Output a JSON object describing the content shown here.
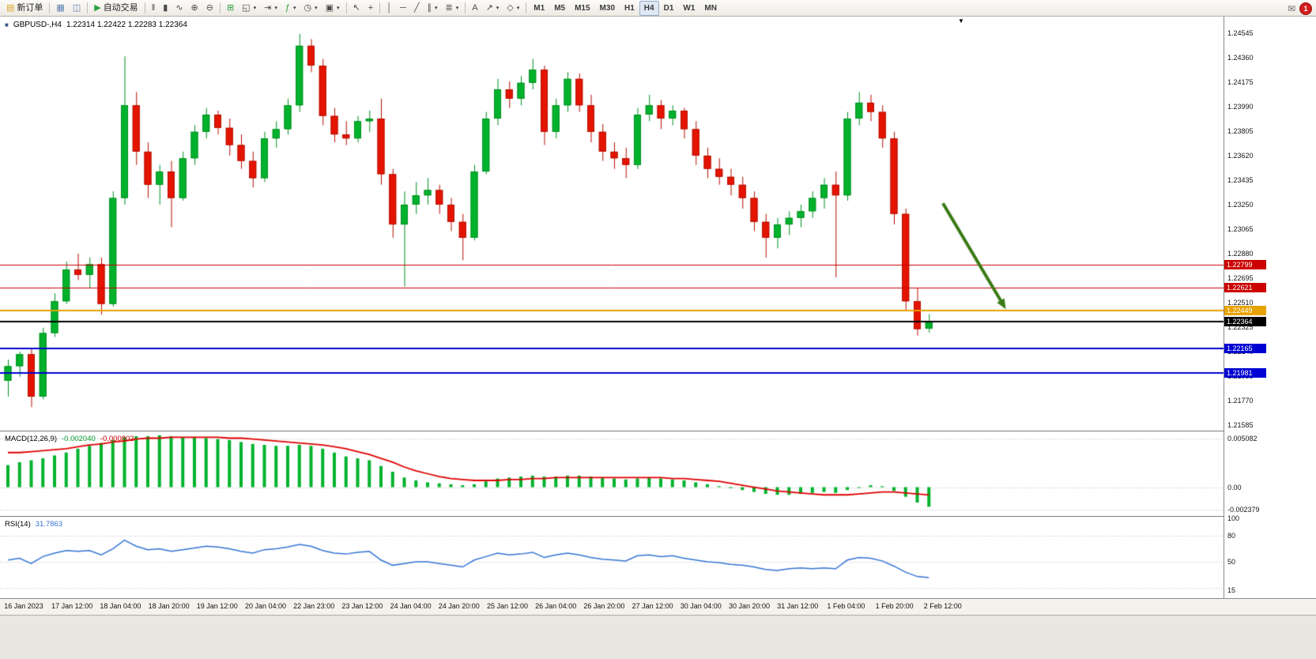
{
  "toolbar": {
    "groups": [
      {
        "items": [
          {
            "name": "new-order-button",
            "icon": "new-order-icon",
            "glyph": "▤",
            "color": "#d9a520",
            "label": "新订单"
          }
        ]
      },
      {
        "items": [
          {
            "name": "market-watch-button",
            "icon": "market-watch-icon",
            "glyph": "▦",
            "color": "#5b7fae"
          },
          {
            "name": "data-window-button",
            "icon": "data-window-icon",
            "glyph": "◫",
            "color": "#5b7fae"
          }
        ]
      },
      {
        "items": [
          {
            "name": "auto-trading-button",
            "icon": "auto-trading-icon",
            "glyph": "▶",
            "color": "#2e9e3e",
            "label": "自动交易"
          }
        ]
      },
      {
        "items": [
          {
            "name": "bar-chart-button",
            "icon": "bar-chart-icon",
            "glyph": "‖"
          },
          {
            "name": "candlestick-chart-button",
            "icon": "candlestick-icon",
            "glyph": "▮"
          },
          {
            "name": "line-chart-button",
            "icon": "line-chart-icon",
            "glyph": "∿"
          },
          {
            "name": "zoom-in-button",
            "icon": "zoom-in-icon",
            "glyph": "⊕"
          },
          {
            "name": "zoom-out-button",
            "icon": "zoom-out-icon",
            "glyph": "⊖"
          }
        ]
      },
      {
        "items": [
          {
            "name": "tile-windows-button",
            "icon": "tile-windows-icon",
            "glyph": "⊞",
            "color": "#2e9e3e"
          },
          {
            "name": "arrange-charts-button",
            "icon": "arrange-charts-icon",
            "glyph": "◱",
            "caret": true
          },
          {
            "name": "chart-shift-button",
            "icon": "chart-shift-icon",
            "glyph": "⇥",
            "caret": true
          },
          {
            "name": "indicators-button",
            "icon": "indicators-icon",
            "glyph": "ƒ",
            "color": "#2e9e3e",
            "caret": true
          },
          {
            "name": "periods-button",
            "icon": "clock-icon",
            "glyph": "◷",
            "caret": true
          },
          {
            "name": "templates-button",
            "icon": "templates-icon",
            "glyph": "▣",
            "caret": true
          }
        ]
      },
      {
        "items": [
          {
            "name": "cursor-button",
            "icon": "cursor-icon",
            "glyph": "↖"
          },
          {
            "name": "crosshair-button",
            "icon": "crosshair-icon",
            "glyph": "+"
          }
        ]
      },
      {
        "items": [
          {
            "name": "vertical-line-button",
            "icon": "vertical-line-icon",
            "glyph": "│"
          },
          {
            "name": "horizontal-line-button",
            "icon": "horizontal-line-icon",
            "glyph": "─"
          },
          {
            "name": "trendline-button",
            "icon": "trendline-icon",
            "glyph": "╱"
          },
          {
            "name": "channel-button",
            "icon": "channel-icon",
            "glyph": "∥",
            "caret": true
          },
          {
            "name": "fibonacci-button",
            "icon": "fibonacci-icon",
            "glyph": "≣",
            "caret": true
          }
        ]
      },
      {
        "items": [
          {
            "name": "text-label-button",
            "icon": "text-icon",
            "glyph": "A"
          },
          {
            "name": "arrows-button",
            "icon": "arrow-tool-icon",
            "glyph": "↗",
            "caret": true
          },
          {
            "name": "shapes-button",
            "icon": "shapes-icon",
            "glyph": "◇",
            "caret": true
          }
        ]
      }
    ],
    "timeframes": {
      "items": [
        "M1",
        "M5",
        "M15",
        "M30",
        "H1",
        "H4",
        "D1",
        "W1",
        "MN"
      ],
      "active": "H4"
    },
    "notification_count": "1",
    "shift_marker": "▼"
  },
  "chart": {
    "title": {
      "symbol": "GBPUSD-,H4",
      "ohlc": "1.22314 1.22422 1.22283 1.22364"
    }
  },
  "chart_data": {
    "type": "candlestick",
    "symbol": "GBPUSD-",
    "timeframe": "H4",
    "last_ohlc": {
      "open": "1.22314",
      "high": "1.22422",
      "low": "1.22283",
      "close": "1.22364"
    },
    "colors": {
      "up": "#00b22c",
      "up_border": "#008f20",
      "down": "#e51400",
      "down_border": "#b40f00"
    },
    "y_range": [
      1.21543,
      1.2467
    ],
    "y_axis_labels": [
      "1.24545",
      "1.24360",
      "1.24175",
      "1.23990",
      "1.23805",
      "1.23620",
      "1.23435",
      "1.23250",
      "1.23065",
      "1.22880",
      "1.22695",
      "1.22510",
      "1.22325",
      "1.22140",
      "1.21955",
      "1.21770",
      "1.21585"
    ],
    "x_labels": [
      "16 Jan 2023",
      "17 Jan 12:00",
      "18 Jan 04:00",
      "18 Jan 20:00",
      "19 Jan 12:00",
      "20 Jan 04:00",
      "22 Jan 23:00",
      "23 Jan 12:00",
      "24 Jan 04:00",
      "24 Jan 20:00",
      "25 Jan 12:00",
      "26 Jan 04:00",
      "26 Jan 20:00",
      "27 Jan 12:00",
      "30 Jan 04:00",
      "30 Jan 20:00",
      "31 Jan 12:00",
      "1 Feb 04:00",
      "1 Feb 20:00",
      "2 Feb 12:00"
    ],
    "candles": [
      [
        1.2192,
        1.2208,
        1.218,
        1.2203
      ],
      [
        1.2203,
        1.2214,
        1.2195,
        1.2212
      ],
      [
        1.2212,
        1.2216,
        1.2172,
        1.218
      ],
      [
        1.218,
        1.2232,
        1.2178,
        1.2228
      ],
      [
        1.2228,
        1.2258,
        1.2225,
        1.2252
      ],
      [
        1.2252,
        1.2282,
        1.225,
        1.2276
      ],
      [
        1.2276,
        1.2288,
        1.2268,
        1.2272
      ],
      [
        1.2272,
        1.2285,
        1.2262,
        1.228
      ],
      [
        1.228,
        1.2285,
        1.2242,
        1.225
      ],
      [
        1.225,
        1.2335,
        1.2248,
        1.233
      ],
      [
        1.233,
        1.2437,
        1.2325,
        1.24
      ],
      [
        1.24,
        1.241,
        1.2355,
        1.2365
      ],
      [
        1.2365,
        1.2372,
        1.233,
        1.234
      ],
      [
        1.234,
        1.2355,
        1.2325,
        1.235
      ],
      [
        1.235,
        1.2358,
        1.2308,
        1.233
      ],
      [
        1.233,
        1.2365,
        1.2328,
        1.236
      ],
      [
        1.236,
        1.2385,
        1.2355,
        1.238
      ],
      [
        1.238,
        1.2398,
        1.2375,
        1.2393
      ],
      [
        1.2393,
        1.2396,
        1.2378,
        1.2383
      ],
      [
        1.2383,
        1.239,
        1.2362,
        1.237
      ],
      [
        1.237,
        1.2378,
        1.2352,
        1.2358
      ],
      [
        1.2358,
        1.2365,
        1.2338,
        1.2345
      ],
      [
        1.2345,
        1.238,
        1.2342,
        1.2375
      ],
      [
        1.2375,
        1.2388,
        1.2368,
        1.2382
      ],
      [
        1.2382,
        1.2405,
        1.2378,
        1.24
      ],
      [
        1.24,
        1.2454,
        1.2395,
        1.2445
      ],
      [
        1.2445,
        1.245,
        1.2425,
        1.243
      ],
      [
        1.243,
        1.2435,
        1.2385,
        1.2392
      ],
      [
        1.2392,
        1.2398,
        1.2372,
        1.2378
      ],
      [
        1.2378,
        1.2388,
        1.237,
        1.2375
      ],
      [
        1.2375,
        1.2392,
        1.2372,
        1.2388
      ],
      [
        1.2388,
        1.2396,
        1.238,
        1.239
      ],
      [
        1.239,
        1.2405,
        1.234,
        1.2348
      ],
      [
        1.2348,
        1.2352,
        1.23,
        1.231
      ],
      [
        1.231,
        1.2335,
        1.2263,
        1.2325
      ],
      [
        1.2325,
        1.2342,
        1.2318,
        1.2332
      ],
      [
        1.2332,
        1.2345,
        1.2325,
        1.2336
      ],
      [
        1.2336,
        1.234,
        1.2318,
        1.2325
      ],
      [
        1.2325,
        1.233,
        1.2305,
        1.2312
      ],
      [
        1.2312,
        1.2318,
        1.2283,
        1.23
      ],
      [
        1.23,
        1.2355,
        1.2298,
        1.235
      ],
      [
        1.235,
        1.2395,
        1.2348,
        1.239
      ],
      [
        1.239,
        1.242,
        1.2385,
        1.2412
      ],
      [
        1.2412,
        1.2418,
        1.2398,
        1.2405
      ],
      [
        1.2405,
        1.2422,
        1.24,
        1.2417
      ],
      [
        1.2417,
        1.2435,
        1.2412,
        1.2427
      ],
      [
        1.2427,
        1.243,
        1.237,
        1.238
      ],
      [
        1.238,
        1.2405,
        1.2375,
        1.24
      ],
      [
        1.24,
        1.2425,
        1.2395,
        1.242
      ],
      [
        1.242,
        1.2424,
        1.2395,
        1.24
      ],
      [
        1.24,
        1.2408,
        1.2372,
        1.238
      ],
      [
        1.238,
        1.2386,
        1.2358,
        1.2365
      ],
      [
        1.2365,
        1.2372,
        1.2352,
        1.236
      ],
      [
        1.236,
        1.2368,
        1.2345,
        1.2355
      ],
      [
        1.2355,
        1.2398,
        1.2352,
        1.2393
      ],
      [
        1.2393,
        1.2408,
        1.2388,
        1.24
      ],
      [
        1.24,
        1.2404,
        1.2382,
        1.239
      ],
      [
        1.239,
        1.24,
        1.2385,
        1.2396
      ],
      [
        1.2396,
        1.2398,
        1.2375,
        1.2382
      ],
      [
        1.2382,
        1.2388,
        1.2355,
        1.2362
      ],
      [
        1.2362,
        1.2368,
        1.2345,
        1.2352
      ],
      [
        1.2352,
        1.236,
        1.234,
        1.2346
      ],
      [
        1.2346,
        1.2352,
        1.2332,
        1.234
      ],
      [
        1.234,
        1.2346,
        1.2322,
        1.233
      ],
      [
        1.233,
        1.2335,
        1.2305,
        1.2312
      ],
      [
        1.2312,
        1.2318,
        1.2285,
        1.23
      ],
      [
        1.23,
        1.2315,
        1.2292,
        1.231
      ],
      [
        1.231,
        1.232,
        1.2302,
        1.2315
      ],
      [
        1.2315,
        1.2325,
        1.2308,
        1.232
      ],
      [
        1.232,
        1.2335,
        1.2315,
        1.233
      ],
      [
        1.233,
        1.2345,
        1.2322,
        1.234
      ],
      [
        1.234,
        1.235,
        1.227,
        1.2332
      ],
      [
        1.2332,
        1.2395,
        1.2328,
        1.239
      ],
      [
        1.239,
        1.241,
        1.2385,
        1.2402
      ],
      [
        1.2402,
        1.2408,
        1.2388,
        1.2395
      ],
      [
        1.2395,
        1.24,
        1.2368,
        1.2375
      ],
      [
        1.2375,
        1.238,
        1.231,
        1.2318
      ],
      [
        1.2318,
        1.2322,
        1.2245,
        1.2252
      ],
      [
        1.2252,
        1.2262,
        1.2226,
        1.2231
      ],
      [
        1.22314,
        1.22422,
        1.22283,
        1.22364
      ]
    ],
    "hlines": [
      {
        "price": 1.22799,
        "label": "1.22799",
        "color": "#cc0000",
        "width": 1
      },
      {
        "price": 1.22621,
        "label": "1.22621",
        "color": "#cc0000",
        "width": 1
      },
      {
        "price": 1.22449,
        "label": "1.22449",
        "color": "#e8a200",
        "width": 2
      },
      {
        "price": 1.22364,
        "label": "1.22364",
        "color": "#000000",
        "width": 2
      },
      {
        "price": 1.22165,
        "label": "1.22165",
        "color": "#0000d2",
        "width": 2
      },
      {
        "price": 1.21981,
        "label": "1.21981",
        "color": "#0000d2",
        "width": 2
      }
    ],
    "arrow": {
      "i1": 80.2,
      "p1": 1.2326,
      "i2": 85.6,
      "p2": 1.2246,
      "color": "#3a7a14"
    },
    "macd": {
      "label": "MACD(12,26,9)",
      "main_value": "-0.002040",
      "signal_value": "-0.000802",
      "range": [
        -0.003,
        0.0058
      ],
      "axis": [
        [
          "0.005082",
          0.005082
        ],
        [
          "0.00",
          0
        ],
        [
          "-0.002379",
          -0.002379
        ]
      ],
      "hist_color": "#00b22c",
      "signal_color": "#e00000",
      "histogram": [
        0.0023,
        0.0026,
        0.0028,
        0.003,
        0.0033,
        0.0036,
        0.004,
        0.0043,
        0.0046,
        0.0049,
        0.0052,
        0.0053,
        0.0053,
        0.0054,
        0.0053,
        0.0052,
        0.0052,
        0.0051,
        0.005,
        0.0049,
        0.0047,
        0.0045,
        0.0044,
        0.0043,
        0.0043,
        0.0044,
        0.0043,
        0.004,
        0.0036,
        0.0032,
        0.003,
        0.0028,
        0.0022,
        0.0016,
        0.001,
        0.0007,
        0.0005,
        0.0004,
        0.0003,
        0.0002,
        0.0003,
        0.0006,
        0.0009,
        0.001,
        0.0011,
        0.0012,
        0.0011,
        0.0011,
        0.0012,
        0.0012,
        0.0011,
        0.001,
        0.0009,
        0.0008,
        0.0009,
        0.001,
        0.0009,
        0.0008,
        0.0007,
        0.0005,
        0.0003,
        0.0001,
        -0.0001,
        -0.0003,
        -0.0005,
        -0.0007,
        -0.0008,
        -0.0008,
        -0.0007,
        -0.0006,
        -0.0005,
        -0.0006,
        -0.0003,
        0.0,
        0.0002,
        0.0001,
        -0.0004,
        -0.001,
        -0.0016,
        -0.00204
      ],
      "signal": [
        0.0036,
        0.0036,
        0.0037,
        0.0038,
        0.0039,
        0.004,
        0.0042,
        0.0044,
        0.0045,
        0.0047,
        0.0048,
        0.005,
        0.0051,
        0.0051,
        0.0052,
        0.0052,
        0.0052,
        0.0052,
        0.0052,
        0.0051,
        0.0051,
        0.005,
        0.0049,
        0.0048,
        0.0047,
        0.0046,
        0.0045,
        0.0044,
        0.0042,
        0.004,
        0.0037,
        0.0034,
        0.003,
        0.0026,
        0.0021,
        0.0017,
        0.0014,
        0.0011,
        0.0009,
        0.0008,
        0.0007,
        0.0007,
        0.0007,
        0.0008,
        0.0008,
        0.0009,
        0.0009,
        0.001,
        0.001,
        0.001,
        0.001,
        0.001,
        0.001,
        0.001,
        0.001,
        0.001,
        0.001,
        0.0009,
        0.0009,
        0.0008,
        0.0007,
        0.0006,
        0.0004,
        0.0002,
        0.0,
        -0.0002,
        -0.0004,
        -0.0005,
        -0.0006,
        -0.0007,
        -0.0008,
        -0.0008,
        -0.0008,
        -0.0007,
        -0.0006,
        -0.0005,
        -0.0005,
        -0.0006,
        -0.0007,
        -0.000802
      ]
    },
    "rsi": {
      "label": "RSI(14)",
      "value": "31.7863",
      "range": [
        8,
        102
      ],
      "axis": [
        [
          "100",
          100
        ],
        [
          "80",
          80
        ],
        [
          "50",
          50
        ],
        [
          "15",
          15
        ]
      ],
      "levels": [
        80,
        50,
        20
      ],
      "line_color": "#3575d4",
      "values": [
        52,
        54,
        48,
        56,
        60,
        63,
        62,
        63,
        58,
        65,
        75,
        68,
        64,
        65,
        62,
        64,
        66,
        68,
        67,
        65,
        62,
        60,
        64,
        65,
        67,
        70,
        68,
        63,
        60,
        59,
        61,
        62,
        52,
        46,
        48,
        50,
        50,
        48,
        46,
        44,
        52,
        56,
        60,
        58,
        59,
        61,
        55,
        58,
        60,
        58,
        55,
        53,
        52,
        51,
        57,
        58,
        56,
        57,
        54,
        52,
        50,
        49,
        47,
        46,
        44,
        41,
        40,
        42,
        43,
        42,
        43,
        42,
        52,
        55,
        54,
        51,
        45,
        38,
        33,
        31.7863
      ]
    }
  }
}
